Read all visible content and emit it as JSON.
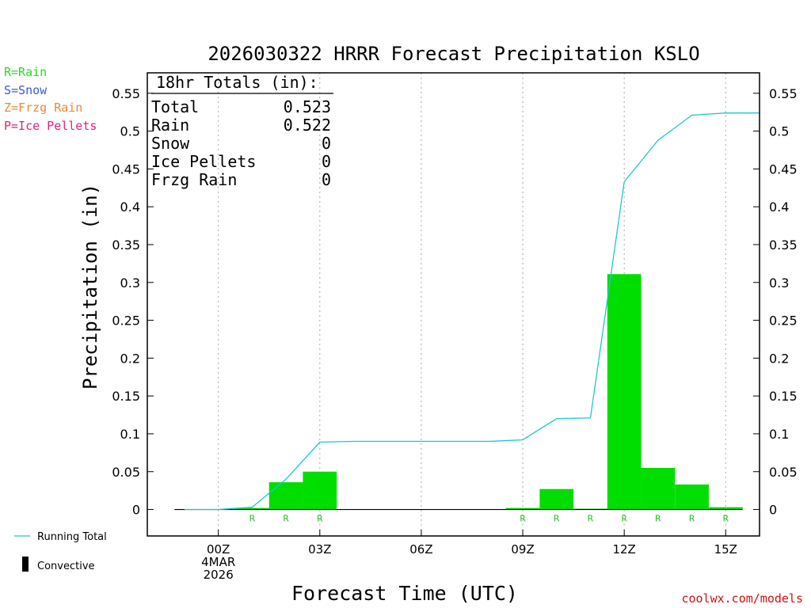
{
  "chart_data": {
    "type": "bar",
    "title": "2026030322 HRRR Forecast Precipitation KSLO",
    "xlabel": "Forecast Time (UTC)",
    "ylabel": "Precipitation (in)",
    "ylim": [
      -0.035,
      0.577
    ],
    "yticks": [
      "0.55",
      "0.5",
      "0.45",
      "0.4",
      "0.35",
      "0.3",
      "0.25",
      "0.2",
      "0.15",
      "0.1",
      "0.05",
      "0"
    ],
    "ytick_values": [
      0.55,
      0.5,
      0.45,
      0.4,
      0.35,
      0.3,
      0.25,
      0.2,
      0.15,
      0.1,
      0.05,
      0
    ],
    "x_hours_range": [
      -2.1,
      16.0
    ],
    "xticks": [
      {
        "hour": 0,
        "lines": [
          "00Z",
          "4MAR",
          "2026"
        ]
      },
      {
        "hour": 3,
        "lines": [
          "03Z"
        ]
      },
      {
        "hour": 6,
        "lines": [
          "06Z"
        ]
      },
      {
        "hour": 9,
        "lines": [
          "09Z"
        ]
      },
      {
        "hour": 12,
        "lines": [
          "12Z"
        ]
      },
      {
        "hour": 15,
        "lines": [
          "15Z"
        ]
      }
    ],
    "bars": [
      {
        "hour": -1,
        "value": 0.0,
        "type": ""
      },
      {
        "hour": 0,
        "value": 0.0,
        "type": ""
      },
      {
        "hour": 1,
        "value": 0.002,
        "type": "R"
      },
      {
        "hour": 2,
        "value": 0.036,
        "type": "R"
      },
      {
        "hour": 3,
        "value": 0.05,
        "type": "R"
      },
      {
        "hour": 4,
        "value": 0.0,
        "type": ""
      },
      {
        "hour": 5,
        "value": 0.0,
        "type": ""
      },
      {
        "hour": 6,
        "value": 0.0,
        "type": ""
      },
      {
        "hour": 7,
        "value": 0.0,
        "type": ""
      },
      {
        "hour": 8,
        "value": 0.0,
        "type": ""
      },
      {
        "hour": 9,
        "value": 0.002,
        "type": "R"
      },
      {
        "hour": 10,
        "value": 0.027,
        "type": "R"
      },
      {
        "hour": 11,
        "value": 0.001,
        "type": "R"
      },
      {
        "hour": 12,
        "value": 0.311,
        "type": "R"
      },
      {
        "hour": 13,
        "value": 0.055,
        "type": "R"
      },
      {
        "hour": 14,
        "value": 0.033,
        "type": "R"
      },
      {
        "hour": 15,
        "value": 0.003,
        "type": "R"
      }
    ],
    "running_total": [
      {
        "hour": -1,
        "value": 0.0
      },
      {
        "hour": 0,
        "value": 0.0
      },
      {
        "hour": 1,
        "value": 0.003
      },
      {
        "hour": 2,
        "value": 0.04
      },
      {
        "hour": 3,
        "value": 0.089
      },
      {
        "hour": 4,
        "value": 0.09
      },
      {
        "hour": 5,
        "value": 0.09
      },
      {
        "hour": 6,
        "value": 0.09
      },
      {
        "hour": 7,
        "value": 0.09
      },
      {
        "hour": 8,
        "value": 0.09
      },
      {
        "hour": 9,
        "value": 0.092
      },
      {
        "hour": 10,
        "value": 0.12
      },
      {
        "hour": 11,
        "value": 0.121
      },
      {
        "hour": 12,
        "value": 0.433
      },
      {
        "hour": 13,
        "value": 0.488
      },
      {
        "hour": 14,
        "value": 0.521
      },
      {
        "hour": 15,
        "value": 0.524
      },
      {
        "hour": 16,
        "value": 0.524
      }
    ],
    "totals_box": {
      "header": "18hr Totals (in):",
      "rows": [
        {
          "label": "Total",
          "value": "0.523"
        },
        {
          "label": "Rain",
          "value": "0.522"
        },
        {
          "label": "Snow",
          "value": "0"
        },
        {
          "label": "Ice Pellets",
          "value": "0"
        },
        {
          "label": "Frzg Rain",
          "value": "0"
        }
      ]
    },
    "type_legend": [
      {
        "text": "R=Rain",
        "color": "#22dd22"
      },
      {
        "text": "S=Snow",
        "color": "#3a5bd8"
      },
      {
        "text": "Z=Frzg Rain",
        "color": "#ee8833"
      },
      {
        "text": "P=Ice Pellets",
        "color": "#e0217f"
      }
    ],
    "series_legend": {
      "running_total": "Running Total",
      "convective": "Convective"
    },
    "credit": "coolwx.com/models",
    "colors": {
      "bar": "#00dd00",
      "running_total": "#1ec8cc",
      "label_r": "#22bb22",
      "grid": "#aaaaaa",
      "credit": "#cc1111"
    },
    "grid": true
  }
}
